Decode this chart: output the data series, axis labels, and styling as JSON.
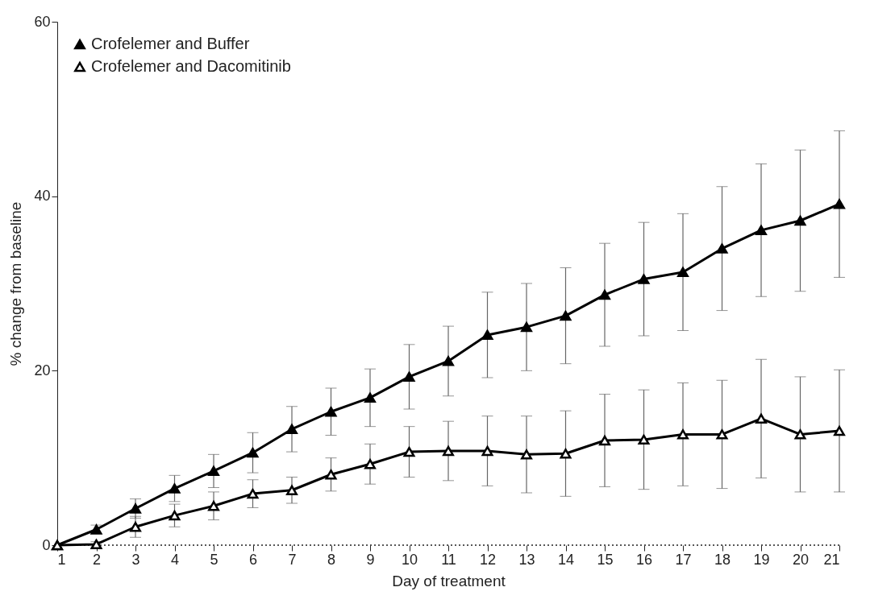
{
  "chart_data": {
    "type": "line",
    "xlabel": "Day of treatment",
    "ylabel": "% change from baseline",
    "x": [
      1,
      2,
      3,
      4,
      5,
      6,
      7,
      8,
      9,
      10,
      11,
      12,
      13,
      14,
      15,
      16,
      17,
      18,
      19,
      20,
      21
    ],
    "xlim": [
      1,
      21
    ],
    "xticks": [
      1,
      2,
      3,
      4,
      5,
      6,
      7,
      8,
      9,
      10,
      11,
      12,
      13,
      14,
      15,
      16,
      17,
      18,
      19,
      20,
      21
    ],
    "ylim": [
      0,
      60
    ],
    "yticks": [
      0,
      20,
      40,
      60
    ],
    "grid": false,
    "legend": "top left",
    "marker": "triangle",
    "line_style": "solid",
    "ref_lines": [
      {
        "axis": "y",
        "value": 0,
        "line_style": "dotted"
      }
    ],
    "series": [
      {
        "name": "Crofelemer and Buffer",
        "color": "#000000",
        "values": [
          0,
          1.8,
          4.2,
          6.5,
          8.5,
          10.6,
          13.3,
          15.3,
          16.9,
          19.3,
          21.1,
          24.1,
          25.0,
          26.3,
          28.7,
          30.5,
          31.3,
          34.0,
          36.1,
          37.2,
          39.1
        ],
        "errors": [
          null,
          0.5,
          1.1,
          1.5,
          1.9,
          2.3,
          2.6,
          2.7,
          3.3,
          3.7,
          4.0,
          4.9,
          5.0,
          5.5,
          5.9,
          6.5,
          6.7,
          7.1,
          7.6,
          8.1,
          8.4
        ]
      },
      {
        "name": "Crofelemer and Dacomitinib",
        "color": "#000000",
        "values": [
          0,
          0.1,
          2.1,
          3.4,
          4.5,
          5.9,
          6.3,
          8.1,
          9.3,
          10.7,
          10.8,
          10.8,
          10.4,
          10.5,
          12.0,
          12.1,
          12.7,
          12.7,
          14.5,
          12.7,
          13.1
        ],
        "errors": [
          null,
          0.3,
          1.2,
          1.3,
          1.6,
          1.6,
          1.5,
          1.9,
          2.3,
          2.9,
          3.4,
          4.0,
          4.4,
          4.9,
          5.3,
          5.7,
          5.9,
          6.2,
          6.8,
          6.6,
          7.0
        ]
      }
    ]
  }
}
